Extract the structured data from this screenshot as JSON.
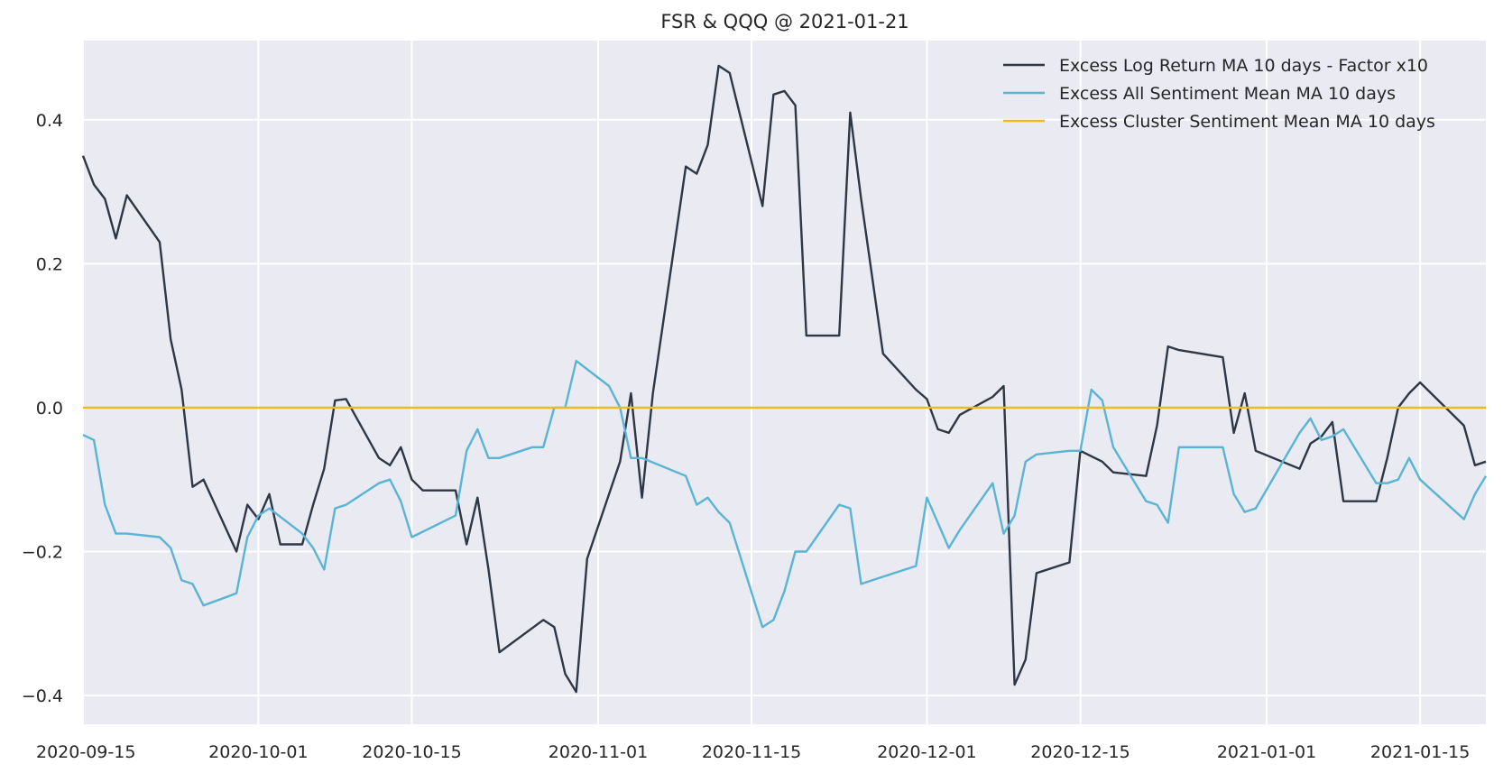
{
  "chart_data": {
    "type": "line",
    "title": "FSR & QQQ @ 2021-01-21",
    "xlabel": "",
    "ylabel": "",
    "xlim": [
      "2020-09-15",
      "2021-01-21"
    ],
    "ylim": [
      -0.44,
      0.51
    ],
    "grid": true,
    "legend_position": "top-right",
    "yticks": [
      {
        "value": -0.4,
        "label": "−0.4"
      },
      {
        "value": -0.2,
        "label": "−0.2"
      },
      {
        "value": 0.0,
        "label": "0.0"
      },
      {
        "value": 0.2,
        "label": "0.2"
      },
      {
        "value": 0.4,
        "label": "0.4"
      }
    ],
    "xticks": [
      {
        "value": "2020-09-15",
        "label": "2020-09-15"
      },
      {
        "value": "2020-10-01",
        "label": "2020-10-01"
      },
      {
        "value": "2020-10-15",
        "label": "2020-10-15"
      },
      {
        "value": "2020-11-01",
        "label": "2020-11-01"
      },
      {
        "value": "2020-11-15",
        "label": "2020-11-15"
      },
      {
        "value": "2020-12-01",
        "label": "2020-12-01"
      },
      {
        "value": "2020-12-15",
        "label": "2020-12-15"
      },
      {
        "value": "2021-01-01",
        "label": "2021-01-01"
      },
      {
        "value": "2021-01-15",
        "label": "2021-01-15"
      }
    ],
    "series": [
      {
        "name": "Excess Log Return MA 10 days - Factor x10",
        "color": "#2f3644",
        "x": [
          "2020-09-15",
          "2020-09-16",
          "2020-09-17",
          "2020-09-18",
          "2020-09-19",
          "2020-09-22",
          "2020-09-23",
          "2020-09-24",
          "2020-09-25",
          "2020-09-26",
          "2020-09-29",
          "2020-09-30",
          "2020-10-01",
          "2020-10-02",
          "2020-10-03",
          "2020-10-05",
          "2020-10-06",
          "2020-10-07",
          "2020-10-08",
          "2020-10-09",
          "2020-10-12",
          "2020-10-13",
          "2020-10-14",
          "2020-10-15",
          "2020-10-16",
          "2020-10-19",
          "2020-10-20",
          "2020-10-21",
          "2020-10-22",
          "2020-10-23",
          "2020-10-27",
          "2020-10-28",
          "2020-10-29",
          "2020-10-30",
          "2020-10-31",
          "2020-11-03",
          "2020-11-04",
          "2020-11-05",
          "2020-11-06",
          "2020-11-09",
          "2020-11-10",
          "2020-11-11",
          "2020-11-12",
          "2020-11-13",
          "2020-11-16",
          "2020-11-17",
          "2020-11-18",
          "2020-11-19",
          "2020-11-20",
          "2020-11-23",
          "2020-11-24",
          "2020-11-25",
          "2020-11-27",
          "2020-11-30",
          "2020-12-01",
          "2020-12-02",
          "2020-12-03",
          "2020-12-04",
          "2020-12-07",
          "2020-12-08",
          "2020-12-09",
          "2020-12-10",
          "2020-12-11",
          "2020-12-14",
          "2020-12-15",
          "2020-12-17",
          "2020-12-18",
          "2020-12-21",
          "2020-12-22",
          "2020-12-23",
          "2020-12-24",
          "2020-12-28",
          "2020-12-29",
          "2020-12-30",
          "2020-12-31",
          "2021-01-04",
          "2021-01-05",
          "2021-01-06",
          "2021-01-07",
          "2021-01-08",
          "2021-01-11",
          "2021-01-12",
          "2021-01-13",
          "2021-01-14",
          "2021-01-15",
          "2021-01-19",
          "2021-01-20",
          "2021-01-21"
        ],
        "y": [
          0.35,
          0.31,
          0.29,
          0.235,
          0.295,
          0.23,
          0.095,
          0.025,
          -0.11,
          -0.1,
          -0.2,
          -0.135,
          -0.155,
          -0.12,
          -0.19,
          -0.19,
          -0.135,
          -0.085,
          0.01,
          0.012,
          -0.07,
          -0.08,
          -0.055,
          -0.1,
          -0.115,
          -0.115,
          -0.19,
          -0.125,
          -0.225,
          -0.34,
          -0.295,
          -0.305,
          -0.37,
          -0.395,
          -0.21,
          -0.075,
          0.02,
          -0.125,
          0.02,
          0.335,
          0.325,
          0.365,
          0.475,
          0.465,
          0.28,
          0.435,
          0.44,
          0.42,
          0.1,
          0.1,
          0.41,
          0.29,
          0.075,
          0.025,
          0.012,
          -0.03,
          -0.035,
          -0.01,
          0.015,
          0.03,
          -0.385,
          -0.35,
          -0.23,
          -0.215,
          -0.06,
          -0.075,
          -0.09,
          -0.095,
          -0.025,
          0.085,
          0.08,
          0.07,
          -0.035,
          0.02,
          -0.06,
          -0.085,
          -0.05,
          -0.04,
          -0.02,
          -0.13,
          -0.13,
          -0.07,
          0.0,
          0.02,
          0.035,
          -0.025,
          -0.08,
          -0.075
        ]
      },
      {
        "name": "Excess All Sentiment Mean MA 10 days",
        "color": "#5ab4d4",
        "x": [
          "2020-09-15",
          "2020-09-16",
          "2020-09-17",
          "2020-09-18",
          "2020-09-19",
          "2020-09-22",
          "2020-09-23",
          "2020-09-24",
          "2020-09-25",
          "2020-09-26",
          "2020-09-29",
          "2020-09-30",
          "2020-10-01",
          "2020-10-02",
          "2020-10-05",
          "2020-10-06",
          "2020-10-07",
          "2020-10-08",
          "2020-10-09",
          "2020-10-12",
          "2020-10-13",
          "2020-10-14",
          "2020-10-15",
          "2020-10-19",
          "2020-10-20",
          "2020-10-21",
          "2020-10-22",
          "2020-10-23",
          "2020-10-26",
          "2020-10-27",
          "2020-10-28",
          "2020-10-29",
          "2020-10-30",
          "2020-11-02",
          "2020-11-03",
          "2020-11-04",
          "2020-11-05",
          "2020-11-09",
          "2020-11-10",
          "2020-11-11",
          "2020-11-12",
          "2020-11-13",
          "2020-11-16",
          "2020-11-17",
          "2020-11-18",
          "2020-11-19",
          "2020-11-20",
          "2020-11-23",
          "2020-11-24",
          "2020-11-25",
          "2020-11-27",
          "2020-11-30",
          "2020-12-01",
          "2020-12-02",
          "2020-12-03",
          "2020-12-04",
          "2020-12-07",
          "2020-12-08",
          "2020-12-09",
          "2020-12-10",
          "2020-12-11",
          "2020-12-14",
          "2020-12-15",
          "2020-12-16",
          "2020-12-17",
          "2020-12-18",
          "2020-12-21",
          "2020-12-22",
          "2020-12-23",
          "2020-12-24",
          "2020-12-28",
          "2020-12-29",
          "2020-12-30",
          "2020-12-31",
          "2021-01-04",
          "2021-01-05",
          "2021-01-06",
          "2021-01-07",
          "2021-01-08",
          "2021-01-11",
          "2021-01-12",
          "2021-01-13",
          "2021-01-14",
          "2021-01-15",
          "2021-01-19",
          "2021-01-20",
          "2021-01-21"
        ],
        "y": [
          -0.038,
          -0.045,
          -0.135,
          -0.175,
          -0.175,
          -0.18,
          -0.195,
          -0.24,
          -0.245,
          -0.275,
          -0.258,
          -0.18,
          -0.15,
          -0.14,
          -0.175,
          -0.195,
          -0.225,
          -0.14,
          -0.135,
          -0.105,
          -0.1,
          -0.13,
          -0.18,
          -0.15,
          -0.06,
          -0.03,
          -0.07,
          -0.07,
          -0.055,
          -0.055,
          0.0,
          0.0,
          0.065,
          0.03,
          0.0,
          -0.07,
          -0.07,
          -0.095,
          -0.135,
          -0.125,
          -0.145,
          -0.16,
          -0.305,
          -0.295,
          -0.255,
          -0.2,
          -0.2,
          -0.135,
          -0.14,
          -0.245,
          -0.235,
          -0.22,
          -0.125,
          -0.16,
          -0.195,
          -0.17,
          -0.105,
          -0.175,
          -0.15,
          -0.075,
          -0.065,
          -0.06,
          -0.06,
          0.025,
          0.01,
          -0.055,
          -0.13,
          -0.135,
          -0.16,
          -0.055,
          -0.055,
          -0.12,
          -0.145,
          -0.14,
          -0.035,
          -0.015,
          -0.045,
          -0.04,
          -0.03,
          -0.105,
          -0.105,
          -0.1,
          -0.07,
          -0.1,
          -0.155,
          -0.12,
          -0.095
        ]
      },
      {
        "name": "Excess Cluster Sentiment Mean MA 10 days",
        "color": "#f0bb1a",
        "x": [
          "2020-09-15",
          "2021-01-21"
        ],
        "y": [
          0.0,
          0.0
        ]
      }
    ]
  }
}
